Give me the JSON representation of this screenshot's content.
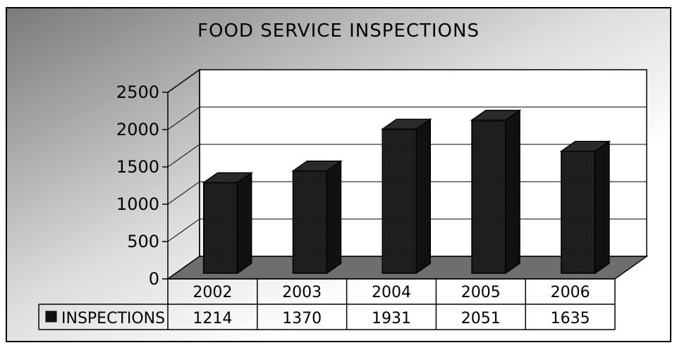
{
  "chart_data": {
    "type": "bar",
    "title": "FOOD SERVICE INSPECTIONS",
    "categories": [
      "2002",
      "2003",
      "2004",
      "2005",
      "2006"
    ],
    "series": [
      {
        "name": "INSPECTIONS",
        "values": [
          1214,
          1370,
          1931,
          2051,
          1635
        ]
      }
    ],
    "ylim": [
      0,
      2500
    ],
    "yticks": [
      "0",
      "500",
      "1000",
      "1500",
      "2000",
      "2500"
    ],
    "table_values": [
      "1214",
      "1370",
      "1931",
      "2051",
      "1635"
    ],
    "grid": true,
    "legend": "data-table-left",
    "colors": {
      "bar": "#1a1a1a",
      "floor": "#6e6e6e"
    }
  }
}
